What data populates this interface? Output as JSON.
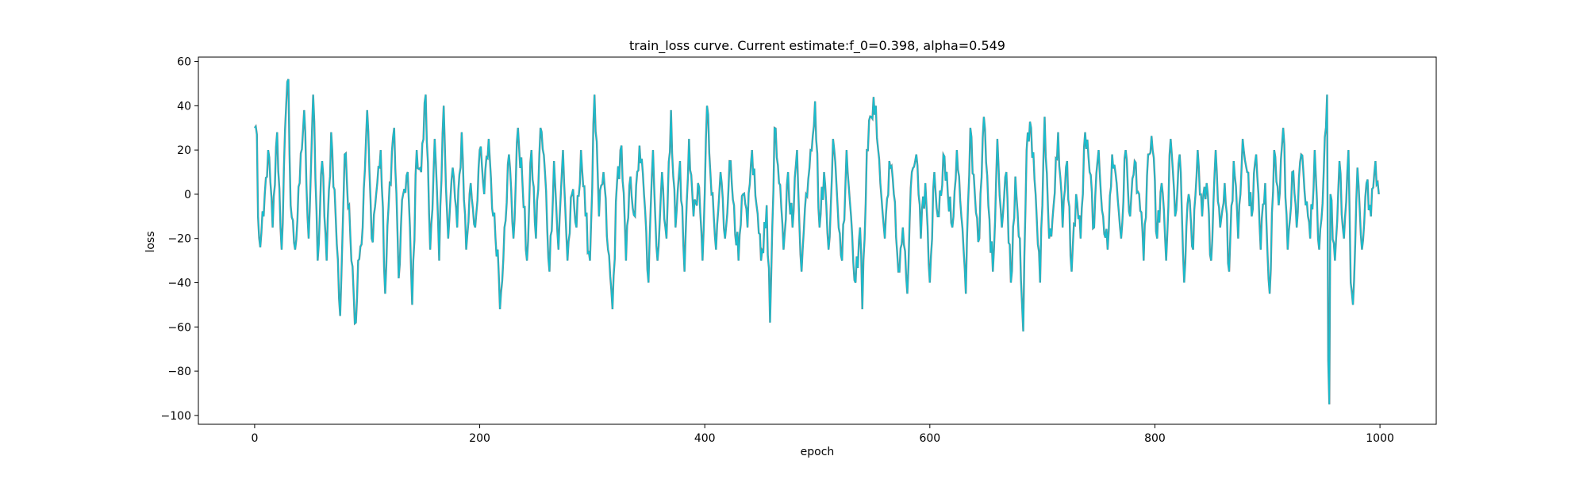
{
  "chart_data": {
    "type": "line",
    "title": "train_loss curve. Current estimate:f_0=0.398, alpha=0.549",
    "xlabel": "epoch",
    "ylabel": "loss",
    "xlim": [
      -50,
      1050
    ],
    "ylim": [
      -104,
      62
    ],
    "xticks": [
      0,
      200,
      400,
      600,
      800,
      1000
    ],
    "yticks": [
      -100,
      -80,
      -60,
      -40,
      -20,
      0,
      20,
      40,
      60
    ],
    "grid": false,
    "series_color": "#17becf",
    "series_edge_color": "#7f7f7f",
    "x_start": 0,
    "x_step": 1,
    "keypoints": [
      [
        0,
        30
      ],
      [
        2,
        27
      ],
      [
        3,
        -10
      ],
      [
        5,
        -24
      ],
      [
        8,
        -10
      ],
      [
        12,
        20
      ],
      [
        16,
        -15
      ],
      [
        20,
        28
      ],
      [
        24,
        -25
      ],
      [
        28,
        40
      ],
      [
        30,
        52
      ],
      [
        32,
        -5
      ],
      [
        36,
        -25
      ],
      [
        40,
        5
      ],
      [
        44,
        38
      ],
      [
        48,
        -20
      ],
      [
        52,
        45
      ],
      [
        56,
        -30
      ],
      [
        60,
        15
      ],
      [
        64,
        -30
      ],
      [
        68,
        28
      ],
      [
        72,
        -10
      ],
      [
        76,
        -55
      ],
      [
        80,
        18
      ],
      [
        84,
        -5
      ],
      [
        88,
        -45
      ],
      [
        90,
        -58
      ],
      [
        92,
        -30
      ],
      [
        96,
        -15
      ],
      [
        100,
        38
      ],
      [
        104,
        -20
      ],
      [
        108,
        0
      ],
      [
        112,
        20
      ],
      [
        116,
        -45
      ],
      [
        120,
        5
      ],
      [
        124,
        30
      ],
      [
        128,
        -38
      ],
      [
        132,
        0
      ],
      [
        136,
        10
      ],
      [
        140,
        -50
      ],
      [
        144,
        20
      ],
      [
        148,
        10
      ],
      [
        152,
        45
      ],
      [
        156,
        -25
      ],
      [
        160,
        25
      ],
      [
        164,
        -30
      ],
      [
        168,
        40
      ],
      [
        172,
        -20
      ],
      [
        176,
        12
      ],
      [
        180,
        -15
      ],
      [
        184,
        28
      ],
      [
        188,
        -25
      ],
      [
        192,
        5
      ],
      [
        196,
        -15
      ],
      [
        200,
        20
      ],
      [
        204,
        0
      ],
      [
        208,
        25
      ],
      [
        212,
        -10
      ],
      [
        216,
        -25
      ],
      [
        218,
        -52
      ],
      [
        222,
        -15
      ],
      [
        226,
        18
      ],
      [
        230,
        -20
      ],
      [
        234,
        30
      ],
      [
        238,
        5
      ],
      [
        242,
        -30
      ],
      [
        246,
        20
      ],
      [
        250,
        -20
      ],
      [
        254,
        30
      ],
      [
        258,
        10
      ],
      [
        262,
        -35
      ],
      [
        266,
        15
      ],
      [
        270,
        -25
      ],
      [
        274,
        20
      ],
      [
        278,
        -30
      ],
      [
        282,
        0
      ],
      [
        286,
        -15
      ],
      [
        290,
        20
      ],
      [
        294,
        -10
      ],
      [
        298,
        -30
      ],
      [
        302,
        45
      ],
      [
        306,
        -10
      ],
      [
        310,
        10
      ],
      [
        314,
        -25
      ],
      [
        318,
        -52
      ],
      [
        322,
        5
      ],
      [
        326,
        22
      ],
      [
        330,
        -30
      ],
      [
        334,
        8
      ],
      [
        338,
        -10
      ],
      [
        342,
        22
      ],
      [
        346,
        0
      ],
      [
        350,
        -40
      ],
      [
        354,
        20
      ],
      [
        358,
        -30
      ],
      [
        362,
        10
      ],
      [
        366,
        -20
      ],
      [
        370,
        38
      ],
      [
        374,
        -15
      ],
      [
        378,
        15
      ],
      [
        382,
        -35
      ],
      [
        386,
        25
      ],
      [
        390,
        -10
      ],
      [
        394,
        5
      ],
      [
        398,
        -30
      ],
      [
        402,
        40
      ],
      [
        406,
        0
      ],
      [
        410,
        -25
      ],
      [
        414,
        10
      ],
      [
        418,
        -20
      ],
      [
        422,
        15
      ],
      [
        426,
        -5
      ],
      [
        430,
        -30
      ],
      [
        434,
        0
      ],
      [
        438,
        -15
      ],
      [
        442,
        20
      ],
      [
        446,
        -5
      ],
      [
        450,
        -30
      ],
      [
        455,
        -5
      ],
      [
        458,
        -58
      ],
      [
        462,
        30
      ],
      [
        466,
        5
      ],
      [
        470,
        -25
      ],
      [
        474,
        10
      ],
      [
        478,
        -15
      ],
      [
        482,
        20
      ],
      [
        486,
        -35
      ],
      [
        490,
        0
      ],
      [
        494,
        20
      ],
      [
        498,
        42
      ],
      [
        502,
        -15
      ],
      [
        506,
        10
      ],
      [
        510,
        -25
      ],
      [
        514,
        25
      ],
      [
        518,
        -5
      ],
      [
        522,
        -30
      ],
      [
        526,
        20
      ],
      [
        530,
        -10
      ],
      [
        534,
        -40
      ],
      [
        538,
        -15
      ],
      [
        540,
        -52
      ],
      [
        544,
        20
      ],
      [
        548,
        35
      ],
      [
        552,
        40
      ],
      [
        556,
        5
      ],
      [
        560,
        -20
      ],
      [
        564,
        15
      ],
      [
        568,
        0
      ],
      [
        572,
        -35
      ],
      [
        576,
        -15
      ],
      [
        580,
        -45
      ],
      [
        584,
        10
      ],
      [
        588,
        18
      ],
      [
        592,
        -20
      ],
      [
        596,
        5
      ],
      [
        600,
        -40
      ],
      [
        604,
        10
      ],
      [
        608,
        -10
      ],
      [
        612,
        18
      ],
      [
        616,
        0
      ],
      [
        620,
        -15
      ],
      [
        624,
        20
      ],
      [
        628,
        -10
      ],
      [
        632,
        -45
      ],
      [
        636,
        30
      ],
      [
        640,
        0
      ],
      [
        644,
        -20
      ],
      [
        648,
        35
      ],
      [
        652,
        -5
      ],
      [
        656,
        -35
      ],
      [
        660,
        25
      ],
      [
        664,
        -15
      ],
      [
        668,
        10
      ],
      [
        672,
        -40
      ],
      [
        676,
        8
      ],
      [
        680,
        -20
      ],
      [
        683,
        -62
      ],
      [
        686,
        20
      ],
      [
        690,
        30
      ],
      [
        694,
        0
      ],
      [
        698,
        -40
      ],
      [
        702,
        35
      ],
      [
        706,
        -20
      ],
      [
        710,
        -5
      ],
      [
        714,
        28
      ],
      [
        718,
        -15
      ],
      [
        722,
        15
      ],
      [
        726,
        -35
      ],
      [
        730,
        0
      ],
      [
        734,
        -20
      ],
      [
        738,
        28
      ],
      [
        742,
        10
      ],
      [
        746,
        -15
      ],
      [
        750,
        20
      ],
      [
        754,
        -10
      ],
      [
        758,
        -25
      ],
      [
        762,
        18
      ],
      [
        766,
        5
      ],
      [
        770,
        -20
      ],
      [
        774,
        20
      ],
      [
        778,
        -10
      ],
      [
        782,
        15
      ],
      [
        786,
        0
      ],
      [
        790,
        -30
      ],
      [
        794,
        18
      ],
      [
        798,
        20
      ],
      [
        802,
        -20
      ],
      [
        806,
        5
      ],
      [
        810,
        -30
      ],
      [
        814,
        25
      ],
      [
        818,
        -10
      ],
      [
        822,
        18
      ],
      [
        826,
        -40
      ],
      [
        830,
        0
      ],
      [
        834,
        -25
      ],
      [
        838,
        20
      ],
      [
        842,
        -10
      ],
      [
        846,
        5
      ],
      [
        850,
        -30
      ],
      [
        854,
        20
      ],
      [
        858,
        -15
      ],
      [
        862,
        5
      ],
      [
        866,
        -35
      ],
      [
        870,
        15
      ],
      [
        874,
        -20
      ],
      [
        878,
        25
      ],
      [
        882,
        10
      ],
      [
        886,
        -10
      ],
      [
        890,
        18
      ],
      [
        894,
        -25
      ],
      [
        898,
        5
      ],
      [
        902,
        -45
      ],
      [
        906,
        20
      ],
      [
        910,
        -5
      ],
      [
        914,
        30
      ],
      [
        918,
        -25
      ],
      [
        922,
        10
      ],
      [
        926,
        -15
      ],
      [
        930,
        18
      ],
      [
        934,
        -5
      ],
      [
        938,
        -20
      ],
      [
        942,
        20
      ],
      [
        946,
        -25
      ],
      [
        950,
        10
      ],
      [
        953,
        45
      ],
      [
        954,
        -75
      ],
      [
        955,
        -95
      ],
      [
        956,
        0
      ],
      [
        960,
        -30
      ],
      [
        964,
        15
      ],
      [
        968,
        -20
      ],
      [
        972,
        20
      ],
      [
        974,
        -40
      ],
      [
        976,
        -50
      ],
      [
        980,
        12
      ],
      [
        984,
        -25
      ],
      [
        988,
        5
      ],
      [
        992,
        -10
      ],
      [
        996,
        15
      ],
      [
        999,
        0
      ]
    ]
  }
}
